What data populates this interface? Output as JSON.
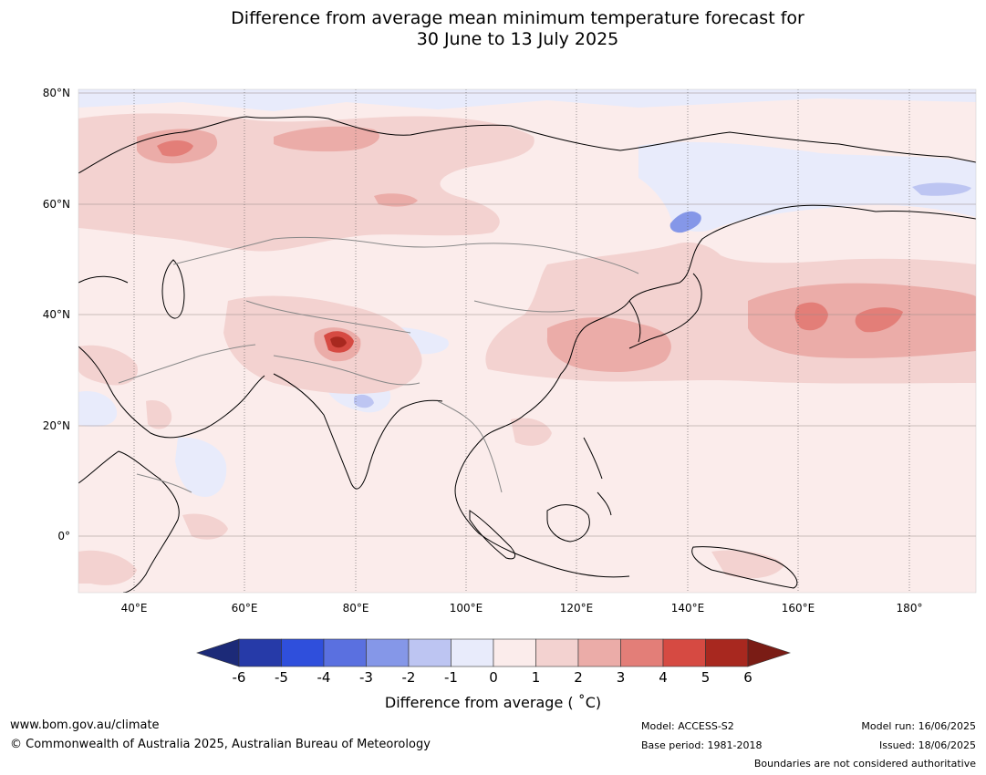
{
  "title": {
    "line1": "Difference from average mean minimum temperature forecast for",
    "line2": "30 June to 13 July 2025"
  },
  "map": {
    "lat_labels": [
      "80°N",
      "60°N",
      "40°N",
      "20°N",
      "0°"
    ],
    "lon_labels": [
      "40°E",
      "60°E",
      "80°E",
      "100°E",
      "120°E",
      "140°E",
      "160°E",
      "180°"
    ],
    "background_color": "#fbeceb"
  },
  "colorbar": {
    "tick_labels": [
      "-6",
      "-5",
      "-4",
      "-3",
      "-2",
      "-1",
      "0",
      "1",
      "2",
      "3",
      "4",
      "5",
      "6"
    ],
    "colors": [
      "#1c2a78",
      "#263aa8",
      "#2f4fdc",
      "#5a70e0",
      "#8597e8",
      "#bdc5f2",
      "#e8ebfb",
      "#fbeceb",
      "#f3d2d0",
      "#ebaca8",
      "#e37e78",
      "#d64a42",
      "#a8281f",
      "#7a1c15"
    ],
    "label": "Difference from average ( ˚C)"
  },
  "footer": {
    "website": "www.bom.gov.au/climate",
    "copyright": "© Commonwealth of Australia 2025, Australian Bureau of Meteorology",
    "model": "Model: ACCESS-S2",
    "base_period": "Base period: 1981-2018",
    "model_run": "Model run: 16/06/2025",
    "issued": "Issued: 18/06/2025",
    "disclaimer": "Boundaries are not considered authoritative"
  }
}
